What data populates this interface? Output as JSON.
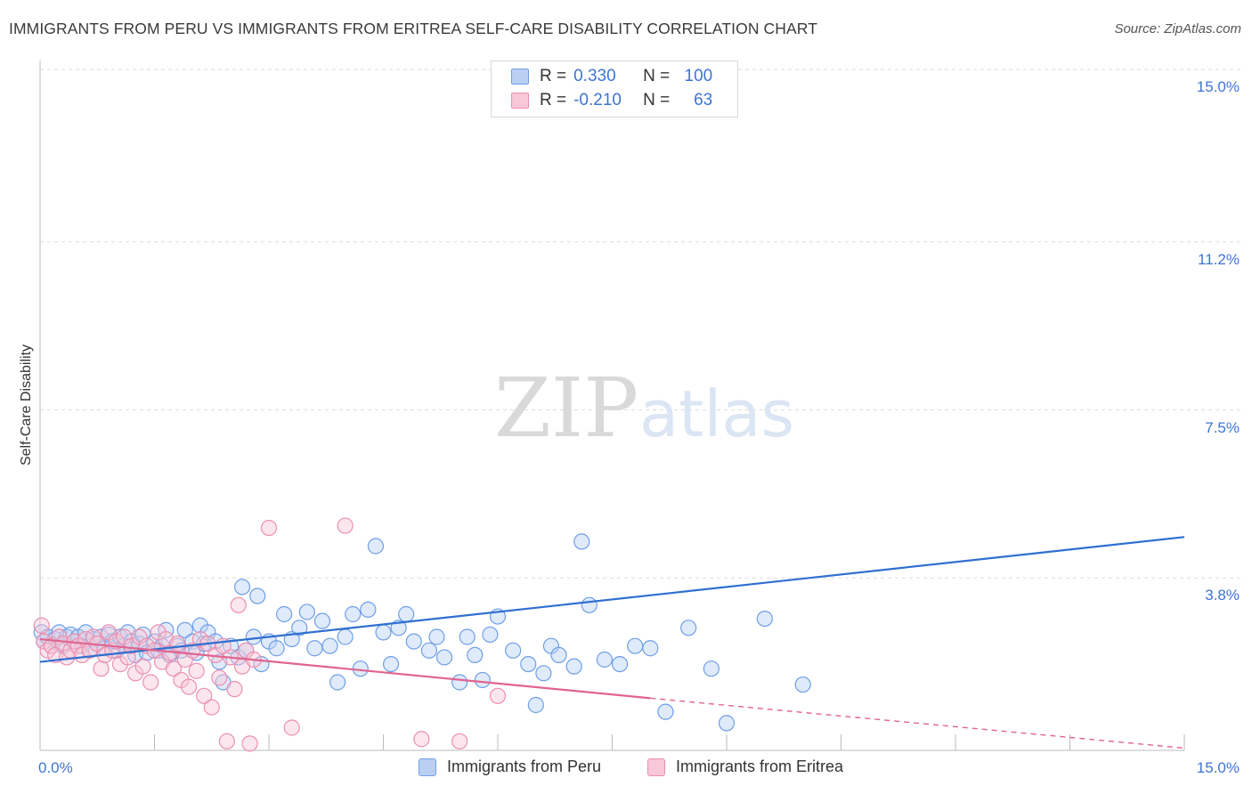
{
  "header": {
    "title": "IMMIGRANTS FROM PERU VS IMMIGRANTS FROM ERITREA SELF-CARE DISABILITY CORRELATION CHART",
    "source": "Source: ZipAtlas.com"
  },
  "legend_top": {
    "r_label": "R =",
    "n_label": "N =",
    "rows": [
      {
        "r": "0.330",
        "n": "100",
        "color": "#6f9fe6",
        "fill": "#b9d0f3"
      },
      {
        "r": "-0.210",
        "n": "63",
        "color": "#ec8fb0",
        "fill": "#f8c7d8"
      }
    ]
  },
  "watermark": {
    "zip": "ZIP",
    "atlas": "atlas"
  },
  "colors": {
    "peru": "#6f9fe6",
    "peru_fill": "#b9d0f3",
    "peru_line": "#2f6fd0",
    "eritrea": "#ec8fb0",
    "eritrea_fill": "#f8c7d8",
    "eritrea_line": "#e0648f",
    "tick": "#3f74d1",
    "grid": "#dcdcdc"
  },
  "chart_data": {
    "type": "scatter",
    "ylabel": "Self-Care Disability",
    "xlim": [
      0,
      15
    ],
    "ylim": [
      0,
      15
    ],
    "x_tick_labels": [
      "0.0%",
      "15.0%"
    ],
    "y_ticks": [
      3.8,
      7.5,
      11.2,
      15.0
    ],
    "y_tick_labels": [
      "3.8%",
      "7.5%",
      "11.2%",
      "15.0%"
    ],
    "grid": true,
    "legend_placement": "bottom",
    "series": [
      {
        "name": "Immigrants from Peru",
        "r": 0.33,
        "n": 100,
        "trend": {
          "x": [
            0,
            15
          ],
          "y": [
            1.95,
            4.7
          ]
        },
        "points": [
          [
            0.02,
            2.6
          ],
          [
            0.05,
            2.4
          ],
          [
            0.1,
            2.5
          ],
          [
            0.15,
            2.3
          ],
          [
            0.2,
            2.45
          ],
          [
            0.25,
            2.6
          ],
          [
            0.3,
            2.3
          ],
          [
            0.35,
            2.5
          ],
          [
            0.4,
            2.55
          ],
          [
            0.45,
            2.4
          ],
          [
            0.5,
            2.5
          ],
          [
            0.55,
            2.3
          ],
          [
            0.6,
            2.6
          ],
          [
            0.65,
            2.2
          ],
          [
            0.7,
            2.45
          ],
          [
            0.75,
            2.35
          ],
          [
            0.8,
            2.5
          ],
          [
            0.85,
            2.25
          ],
          [
            0.9,
            2.55
          ],
          [
            0.95,
            2.4
          ],
          [
            1.0,
            2.2
          ],
          [
            1.05,
            2.5
          ],
          [
            1.1,
            2.3
          ],
          [
            1.15,
            2.6
          ],
          [
            1.2,
            2.4
          ],
          [
            1.25,
            2.1
          ],
          [
            1.3,
            2.35
          ],
          [
            1.35,
            2.55
          ],
          [
            1.4,
            2.15
          ],
          [
            1.5,
            2.4
          ],
          [
            1.55,
            2.2
          ],
          [
            1.6,
            2.3
          ],
          [
            1.65,
            2.65
          ],
          [
            1.7,
            2.1
          ],
          [
            1.8,
            2.3
          ],
          [
            1.85,
            2.2
          ],
          [
            1.9,
            2.65
          ],
          [
            2.0,
            2.4
          ],
          [
            2.05,
            2.15
          ],
          [
            2.1,
            2.75
          ],
          [
            2.15,
            2.35
          ],
          [
            2.2,
            2.6
          ],
          [
            2.3,
            2.4
          ],
          [
            2.35,
            1.95
          ],
          [
            2.4,
            1.5
          ],
          [
            2.5,
            2.3
          ],
          [
            2.6,
            2.05
          ],
          [
            2.65,
            3.6
          ],
          [
            2.7,
            2.2
          ],
          [
            2.8,
            2.5
          ],
          [
            2.85,
            3.4
          ],
          [
            2.9,
            1.9
          ],
          [
            3.0,
            2.4
          ],
          [
            3.1,
            2.25
          ],
          [
            3.2,
            3.0
          ],
          [
            3.3,
            2.45
          ],
          [
            3.4,
            2.7
          ],
          [
            3.5,
            3.05
          ],
          [
            3.6,
            2.25
          ],
          [
            3.7,
            2.85
          ],
          [
            3.8,
            2.3
          ],
          [
            3.9,
            1.5
          ],
          [
            4.0,
            2.5
          ],
          [
            4.1,
            3.0
          ],
          [
            4.2,
            1.8
          ],
          [
            4.3,
            3.1
          ],
          [
            4.4,
            4.5
          ],
          [
            4.5,
            2.6
          ],
          [
            4.6,
            1.9
          ],
          [
            4.7,
            2.7
          ],
          [
            4.8,
            3.0
          ],
          [
            4.9,
            2.4
          ],
          [
            5.1,
            2.2
          ],
          [
            5.2,
            2.5
          ],
          [
            5.3,
            2.05
          ],
          [
            5.5,
            1.5
          ],
          [
            5.6,
            2.5
          ],
          [
            5.7,
            2.1
          ],
          [
            5.8,
            1.55
          ],
          [
            5.9,
            2.55
          ],
          [
            6.0,
            2.95
          ],
          [
            6.2,
            2.2
          ],
          [
            6.4,
            1.9
          ],
          [
            6.5,
            1.0
          ],
          [
            6.6,
            1.7
          ],
          [
            6.7,
            2.3
          ],
          [
            6.8,
            2.1
          ],
          [
            7.0,
            1.85
          ],
          [
            7.1,
            4.6
          ],
          [
            7.2,
            3.2
          ],
          [
            7.4,
            2.0
          ],
          [
            7.6,
            1.9
          ],
          [
            7.8,
            2.3
          ],
          [
            8.0,
            2.25
          ],
          [
            8.2,
            0.85
          ],
          [
            8.5,
            2.7
          ],
          [
            8.8,
            1.8
          ],
          [
            9.0,
            0.6
          ],
          [
            9.5,
            2.9
          ],
          [
            10.0,
            1.45
          ]
        ]
      },
      {
        "name": "Immigrants from Eritrea",
        "r": -0.21,
        "n": 63,
        "trend": {
          "x": [
            0,
            8.0
          ],
          "y": [
            2.45,
            1.15
          ]
        },
        "trend_dashed": {
          "x": [
            8.0,
            15
          ],
          "y": [
            1.15,
            0.05
          ]
        },
        "points": [
          [
            0.02,
            2.75
          ],
          [
            0.05,
            2.4
          ],
          [
            0.1,
            2.2
          ],
          [
            0.15,
            2.3
          ],
          [
            0.2,
            2.1
          ],
          [
            0.25,
            2.5
          ],
          [
            0.3,
            2.35
          ],
          [
            0.35,
            2.05
          ],
          [
            0.4,
            2.2
          ],
          [
            0.45,
            2.4
          ],
          [
            0.5,
            2.3
          ],
          [
            0.55,
            2.1
          ],
          [
            0.6,
            2.45
          ],
          [
            0.65,
            2.2
          ],
          [
            0.7,
            2.5
          ],
          [
            0.75,
            2.35
          ],
          [
            0.8,
            1.8
          ],
          [
            0.85,
            2.1
          ],
          [
            0.9,
            2.6
          ],
          [
            0.95,
            2.2
          ],
          [
            1.0,
            2.4
          ],
          [
            1.05,
            1.9
          ],
          [
            1.1,
            2.5
          ],
          [
            1.15,
            2.05
          ],
          [
            1.2,
            2.3
          ],
          [
            1.25,
            1.7
          ],
          [
            1.3,
            2.5
          ],
          [
            1.35,
            1.85
          ],
          [
            1.4,
            2.3
          ],
          [
            1.45,
            1.5
          ],
          [
            1.5,
            2.2
          ],
          [
            1.55,
            2.6
          ],
          [
            1.6,
            1.95
          ],
          [
            1.65,
            2.45
          ],
          [
            1.7,
            2.15
          ],
          [
            1.75,
            1.8
          ],
          [
            1.8,
            2.35
          ],
          [
            1.85,
            1.55
          ],
          [
            1.9,
            2.0
          ],
          [
            1.95,
            1.4
          ],
          [
            2.0,
            2.2
          ],
          [
            2.05,
            1.75
          ],
          [
            2.1,
            2.45
          ],
          [
            2.15,
            1.2
          ],
          [
            2.2,
            2.35
          ],
          [
            2.25,
            0.95
          ],
          [
            2.3,
            2.1
          ],
          [
            2.35,
            1.6
          ],
          [
            2.4,
            2.3
          ],
          [
            2.45,
            0.2
          ],
          [
            2.5,
            2.05
          ],
          [
            2.55,
            1.35
          ],
          [
            2.6,
            3.2
          ],
          [
            2.65,
            1.85
          ],
          [
            2.7,
            2.2
          ],
          [
            2.75,
            0.15
          ],
          [
            2.8,
            2.0
          ],
          [
            3.0,
            4.9
          ],
          [
            3.3,
            0.5
          ],
          [
            4.0,
            4.95
          ],
          [
            5.0,
            0.25
          ],
          [
            5.5,
            0.2
          ],
          [
            6.0,
            1.2
          ]
        ]
      }
    ]
  },
  "legend_bottom": [
    {
      "label": "Immigrants from Peru",
      "color": "#6f9fe6",
      "fill": "#b9d0f3"
    },
    {
      "label": "Immigrants from Eritrea",
      "color": "#ec8fb0",
      "fill": "#f8c7d8"
    }
  ]
}
